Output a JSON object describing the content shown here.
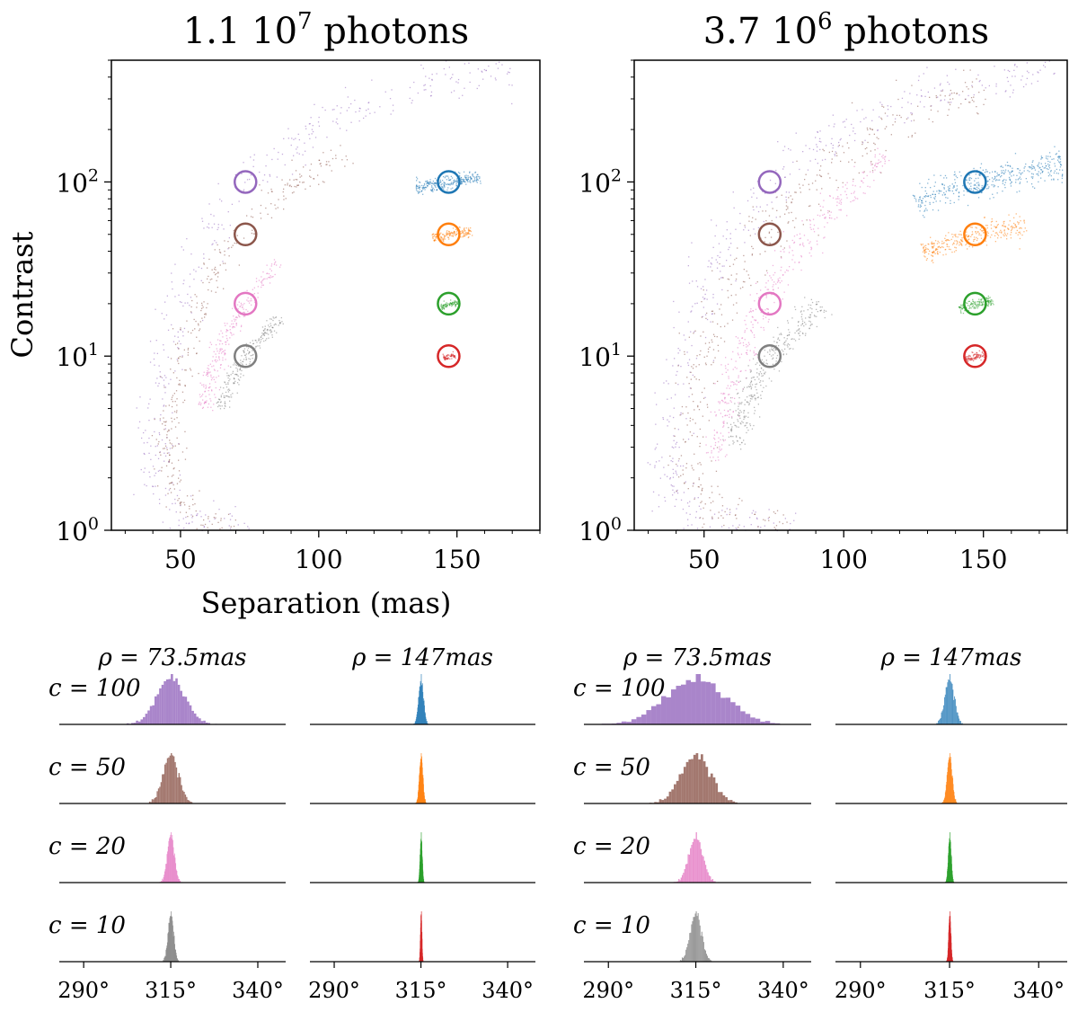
{
  "colors": {
    "purple": "#9467bd",
    "brown": "#8c564b",
    "pink": "#e377c2",
    "gray": "#7f7f7f",
    "blue": "#1f77b4",
    "orange": "#ff7f0e",
    "green": "#2ca02c",
    "red": "#d62728"
  },
  "chart_data": [
    {
      "type": "scatter",
      "title": "1.1 10^7 photons",
      "title_base": "1.1 10",
      "title_exp": "7",
      "title_suffix": " photons",
      "xlabel": "Separation (mas)",
      "ylabel": "Contrast",
      "xlim": [
        25,
        180
      ],
      "ylim": [
        1,
        500
      ],
      "yscale": "log",
      "xticks": [
        "50",
        "100",
        "150"
      ],
      "yticks": [
        "10^0",
        "10^1",
        "10^2"
      ],
      "true_positions": [
        {
          "color": "purple",
          "x": 73.5,
          "y": 100
        },
        {
          "color": "brown",
          "x": 73.5,
          "y": 50
        },
        {
          "color": "pink",
          "x": 73.5,
          "y": 20
        },
        {
          "color": "gray",
          "x": 73.5,
          "y": 10
        },
        {
          "color": "blue",
          "x": 147,
          "y": 100
        },
        {
          "color": "orange",
          "x": 147,
          "y": 50
        },
        {
          "color": "green",
          "x": 147,
          "y": 20
        },
        {
          "color": "red",
          "x": 147,
          "y": 10
        }
      ],
      "clouds": [
        {
          "color": "purple",
          "curve": [
            [
              170,
              450
            ],
            [
              130,
              330
            ],
            [
              100,
              210
            ],
            [
              75,
              110
            ],
            [
              58,
              45
            ],
            [
              48,
              18
            ],
            [
              42,
              6
            ],
            [
              40,
              2.5
            ],
            [
              44,
              1.4
            ],
            [
              55,
              1.1
            ],
            [
              75,
              1.0
            ]
          ],
          "spread": 0.05,
          "n": 420
        },
        {
          "color": "brown",
          "curve": [
            [
              110,
              150
            ],
            [
              90,
              95
            ],
            [
              73.5,
              55
            ],
            [
              60,
              25
            ],
            [
              50,
              10
            ],
            [
              45,
              4
            ],
            [
              47,
              1.8
            ],
            [
              55,
              1.2
            ],
            [
              70,
              1.05
            ]
          ],
          "spread": 0.035,
          "n": 360
        },
        {
          "color": "pink",
          "curve": [
            [
              85,
              35
            ],
            [
              73.5,
              20
            ],
            [
              65,
              12
            ],
            [
              60,
              7
            ],
            [
              58,
              5
            ]
          ],
          "spread": 0.02,
          "n": 260
        },
        {
          "color": "gray",
          "curve": [
            [
              86,
              17
            ],
            [
              73.5,
              10
            ],
            [
              68,
              7
            ],
            [
              64,
              5
            ]
          ],
          "spread": 0.015,
          "n": 220
        },
        {
          "color": "blue",
          "curve": [
            [
              135,
              93
            ],
            [
              147,
              100
            ],
            [
              158,
              108
            ]
          ],
          "spread": 0.012,
          "n": 260
        },
        {
          "color": "orange",
          "curve": [
            [
              141,
              48
            ],
            [
              147,
              50
            ],
            [
              155,
              53
            ]
          ],
          "spread": 0.008,
          "n": 160
        },
        {
          "color": "green",
          "curve": [
            [
              144,
              19.4
            ],
            [
              147,
              20
            ],
            [
              150,
              20.6
            ]
          ],
          "spread": 0.004,
          "n": 80
        },
        {
          "color": "red",
          "curve": [
            [
              145,
              9.8
            ],
            [
              147,
              10
            ],
            [
              149,
              10.2
            ]
          ],
          "spread": 0.003,
          "n": 60
        }
      ],
      "histograms": {
        "row_labels": [
          "c = 100",
          "c = 50",
          "c = 20",
          "c = 10"
        ],
        "column_titles": [
          "ρ = 73.5mas",
          "ρ = 147mas"
        ],
        "xticks": [
          "290°",
          "315°",
          "340°"
        ],
        "xlim_deg": [
          283,
          348
        ],
        "panels": [
          {
            "row": 0,
            "col": 0,
            "color": "purple",
            "center": 315,
            "sigma": 4.0
          },
          {
            "row": 0,
            "col": 1,
            "color": "blue",
            "center": 315,
            "sigma": 0.7
          },
          {
            "row": 1,
            "col": 0,
            "color": "brown",
            "center": 315,
            "sigma": 2.2
          },
          {
            "row": 1,
            "col": 1,
            "color": "orange",
            "center": 315,
            "sigma": 0.5
          },
          {
            "row": 2,
            "col": 0,
            "color": "pink",
            "center": 315,
            "sigma": 1.0
          },
          {
            "row": 2,
            "col": 1,
            "color": "green",
            "center": 315,
            "sigma": 0.3
          },
          {
            "row": 3,
            "col": 0,
            "color": "gray",
            "center": 315,
            "sigma": 0.8
          },
          {
            "row": 3,
            "col": 1,
            "color": "red",
            "center": 315,
            "sigma": 0.2
          }
        ]
      }
    },
    {
      "type": "scatter",
      "title": "3.7 10^6 photons",
      "title_base": "3.7 10",
      "title_exp": "6",
      "title_suffix": " photons",
      "xlabel": "",
      "ylabel": "",
      "xlim": [
        25,
        180
      ],
      "ylim": [
        1,
        500
      ],
      "yscale": "log",
      "xticks": [
        "50",
        "100",
        "150"
      ],
      "yticks": [
        "10^0",
        "10^1",
        "10^2"
      ],
      "true_positions": [
        {
          "color": "purple",
          "x": 73.5,
          "y": 100
        },
        {
          "color": "brown",
          "x": 73.5,
          "y": 50
        },
        {
          "color": "pink",
          "x": 73.5,
          "y": 20
        },
        {
          "color": "gray",
          "x": 73.5,
          "y": 10
        },
        {
          "color": "blue",
          "x": 147,
          "y": 100
        },
        {
          "color": "orange",
          "x": 147,
          "y": 50
        },
        {
          "color": "green",
          "x": 147,
          "y": 20
        },
        {
          "color": "red",
          "x": 147,
          "y": 10
        }
      ],
      "clouds": [
        {
          "color": "purple",
          "curve": [
            [
              175,
              480
            ],
            [
              130,
              320
            ],
            [
              100,
              200
            ],
            [
              75,
              105
            ],
            [
              55,
              40
            ],
            [
              44,
              15
            ],
            [
              38,
              5
            ],
            [
              36,
              2.2
            ],
            [
              42,
              1.3
            ],
            [
              60,
              1.05
            ],
            [
              85,
              1.0
            ]
          ],
          "spread": 0.06,
          "n": 480
        },
        {
          "color": "brown",
          "curve": [
            [
              150,
              350
            ],
            [
              120,
              230
            ],
            [
              95,
              120
            ],
            [
              73.5,
              55
            ],
            [
              58,
              22
            ],
            [
              48,
              8
            ],
            [
              44,
              3
            ],
            [
              47,
              1.6
            ],
            [
              60,
              1.1
            ],
            [
              80,
              1.02
            ]
          ],
          "spread": 0.06,
          "n": 460
        },
        {
          "color": "pink",
          "curve": [
            [
              115,
              140
            ],
            [
              95,
              70
            ],
            [
              80,
              35
            ],
            [
              68,
              16
            ],
            [
              60,
              8
            ],
            [
              55,
              4
            ],
            [
              53,
              2.5
            ]
          ],
          "spread": 0.035,
          "n": 420
        },
        {
          "color": "gray",
          "curve": [
            [
              92,
              20
            ],
            [
              80,
              13
            ],
            [
              73.5,
              10
            ],
            [
              66,
              6
            ],
            [
              62,
              4
            ],
            [
              60,
              3
            ]
          ],
          "spread": 0.03,
          "n": 340
        },
        {
          "color": "blue",
          "curve": [
            [
              125,
              80
            ],
            [
              147,
              100
            ],
            [
              178,
              125
            ]
          ],
          "spread": 0.035,
          "n": 420
        },
        {
          "color": "orange",
          "curve": [
            [
              128,
              40
            ],
            [
              147,
              50
            ],
            [
              165,
              58
            ]
          ],
          "spread": 0.025,
          "n": 300
        },
        {
          "color": "green",
          "curve": [
            [
              141,
              18.8
            ],
            [
              147,
              20
            ],
            [
              153,
              21.2
            ]
          ],
          "spread": 0.008,
          "n": 140
        },
        {
          "color": "red",
          "curve": [
            [
              143,
              9.6
            ],
            [
              147,
              10
            ],
            [
              151,
              10.4
            ]
          ],
          "spread": 0.006,
          "n": 100
        }
      ],
      "histograms": {
        "row_labels": [
          "c = 100",
          "c = 50",
          "c = 20",
          "c = 10"
        ],
        "column_titles": [
          "ρ = 73.5mas",
          "ρ = 147mas"
        ],
        "xticks": [
          "290°",
          "315°",
          "340°"
        ],
        "xlim_deg": [
          283,
          348
        ],
        "panels": [
          {
            "row": 0,
            "col": 0,
            "color": "purple",
            "center": 315,
            "sigma": 8.5
          },
          {
            "row": 0,
            "col": 1,
            "color": "blue",
            "center": 315,
            "sigma": 1.3
          },
          {
            "row": 1,
            "col": 0,
            "color": "brown",
            "center": 315,
            "sigma": 4.2
          },
          {
            "row": 1,
            "col": 1,
            "color": "orange",
            "center": 315,
            "sigma": 0.7
          },
          {
            "row": 2,
            "col": 0,
            "color": "pink",
            "center": 315,
            "sigma": 2.0
          },
          {
            "row": 2,
            "col": 1,
            "color": "green",
            "center": 315,
            "sigma": 0.4
          },
          {
            "row": 3,
            "col": 0,
            "color": "gray",
            "center": 315,
            "sigma": 1.6
          },
          {
            "row": 3,
            "col": 1,
            "color": "red",
            "center": 315,
            "sigma": 0.3
          }
        ]
      }
    }
  ]
}
